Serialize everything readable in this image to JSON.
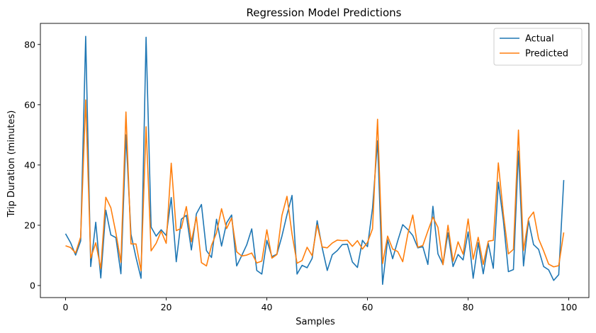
{
  "chart_data": {
    "type": "line",
    "title": "Regression Model Predictions",
    "xlabel": "Samples",
    "ylabel": "Trip Duration (minutes)",
    "xlim": [
      -5,
      104
    ],
    "ylim": [
      -4,
      87
    ],
    "xticks": [
      0,
      20,
      40,
      60,
      80,
      100
    ],
    "yticks": [
      0,
      20,
      40,
      60,
      80
    ],
    "grid": false,
    "legend_position": "top-right",
    "series": [
      {
        "name": "Actual",
        "color": "#1f77b4",
        "values": [
          17.2,
          14.2,
          10.1,
          14.8,
          82.7,
          6.3,
          21.0,
          2.5,
          25.0,
          16.8,
          15.9,
          3.9,
          50.0,
          17.0,
          9.3,
          2.4,
          82.4,
          19.4,
          16.4,
          18.5,
          16.6,
          29.2,
          7.9,
          22.0,
          23.3,
          11.8,
          23.8,
          26.9,
          11.6,
          9.3,
          22.0,
          13.1,
          20.8,
          23.4,
          6.5,
          9.9,
          13.5,
          18.8,
          5.0,
          3.8,
          15.0,
          9.6,
          10.4,
          16.4,
          23.5,
          29.9,
          3.8,
          6.7,
          5.9,
          9.0,
          21.5,
          12.5,
          5.0,
          10.2,
          11.6,
          13.6,
          13.7,
          7.8,
          6.0,
          15.0,
          12.9,
          25.7,
          48.0,
          0.4,
          15.2,
          8.9,
          14.8,
          20.2,
          18.6,
          16.6,
          12.5,
          12.9,
          7.0,
          26.3,
          10.5,
          7.0,
          17.5,
          6.3,
          10.3,
          8.5,
          17.8,
          2.4,
          14.2,
          3.9,
          14.0,
          5.7,
          34.3,
          21.6,
          4.6,
          5.3,
          44.6,
          6.5,
          21.6,
          13.6,
          12.0,
          6.3,
          5.2,
          1.7,
          3.6,
          35.0
        ]
      },
      {
        "name": "Predicted",
        "color": "#ff7f0e",
        "values": [
          13.2,
          12.6,
          10.8,
          16.1,
          61.6,
          9.1,
          14.2,
          5.7,
          29.3,
          25.8,
          17.5,
          7.7,
          57.6,
          13.8,
          13.8,
          4.9,
          52.7,
          11.5,
          14.0,
          18.0,
          14.0,
          40.6,
          18.2,
          19.0,
          26.2,
          14.5,
          22.8,
          7.6,
          6.5,
          13.3,
          17.5,
          25.5,
          18.9,
          22.4,
          11.2,
          9.8,
          10.1,
          10.8,
          7.5,
          8.1,
          18.5,
          9.1,
          10.3,
          23.3,
          29.6,
          17.1,
          7.4,
          8.3,
          12.7,
          9.9,
          20.1,
          12.8,
          12.5,
          14.1,
          15.1,
          14.9,
          15.0,
          13.0,
          14.9,
          12.1,
          14.3,
          18.8,
          55.2,
          7.3,
          16.4,
          12.1,
          11.3,
          7.9,
          17.0,
          23.4,
          12.7,
          13.3,
          18.1,
          22.7,
          19.3,
          6.9,
          20.0,
          8.0,
          14.5,
          10.4,
          22.1,
          8.7,
          16.0,
          7.0,
          14.7,
          15.0,
          40.7,
          23.8,
          10.5,
          12.0,
          51.6,
          11.6,
          22.2,
          24.4,
          15.5,
          11.5,
          7.1,
          6.2,
          6.6,
          17.6
        ]
      }
    ]
  }
}
